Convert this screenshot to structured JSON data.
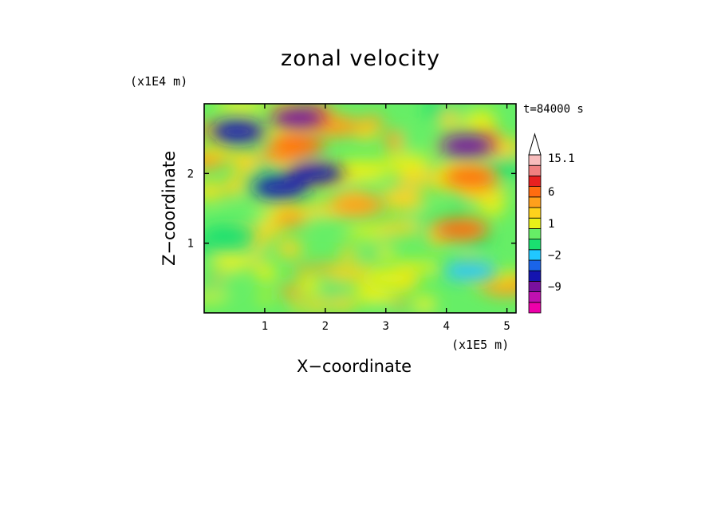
{
  "chart_data": {
    "type": "heatmap",
    "title": "zonal velocity",
    "xlabel": "X−coordinate",
    "ylabel": "Z−coordinate",
    "x_unit": "(x1E5 m)",
    "y_unit": "(x1E4 m)",
    "annotation": "t=84000 s",
    "xlim": [
      0,
      5.15
    ],
    "ylim": [
      0,
      3.0
    ],
    "x_ticks": [
      1,
      2,
      3,
      4,
      5
    ],
    "x_tick_labels": [
      "1",
      "2",
      "3",
      "4",
      "5"
    ],
    "y_ticks": [
      1,
      2
    ],
    "y_tick_labels": [
      "1",
      "2"
    ],
    "colorbar": {
      "levels": [
        -15,
        -12,
        -9,
        -6,
        -3,
        -2,
        -1,
        0,
        1,
        2,
        3,
        6,
        9,
        12,
        15.1
      ],
      "tick_labels": [
        {
          "level": 15.1,
          "label": "15.1"
        },
        {
          "level": 6,
          "label": "6"
        },
        {
          "level": 1,
          "label": "1"
        },
        {
          "level": -2,
          "label": "−2"
        },
        {
          "level": -9,
          "label": "−9"
        }
      ],
      "colors": [
        "#ee00aa",
        "#c010b0",
        "#7a109e",
        "#1414b0",
        "#1a64e8",
        "#20c8ff",
        "#1ae070",
        "#66ee66",
        "#e8f018",
        "#ffd21c",
        "#ffa01c",
        "#ff6c10",
        "#e82020",
        "#f08080",
        "#f8bcbc"
      ],
      "extend": "max"
    },
    "features": [
      {
        "x": 1.55,
        "z": 2.8,
        "value": -9
      },
      {
        "x": 0.55,
        "z": 2.6,
        "value": -6
      },
      {
        "x": 1.55,
        "z": 2.4,
        "value": 6
      },
      {
        "x": 1.25,
        "z": 1.8,
        "value": -6
      },
      {
        "x": 1.85,
        "z": 2.0,
        "value": -6
      },
      {
        "x": 4.35,
        "z": 2.4,
        "value": -9
      },
      {
        "x": 4.4,
        "z": 1.95,
        "value": 6
      },
      {
        "x": 4.25,
        "z": 1.2,
        "value": 6
      },
      {
        "x": 2.55,
        "z": 1.55,
        "value": 3
      },
      {
        "x": 0.4,
        "z": 1.1,
        "value": -1
      },
      {
        "x": 4.4,
        "z": 0.6,
        "value": -2
      },
      {
        "x": 3.1,
        "z": 0.5,
        "value": 1
      }
    ]
  }
}
